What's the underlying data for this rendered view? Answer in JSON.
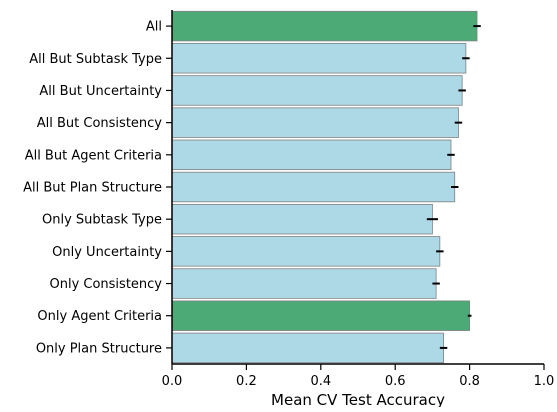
{
  "chart_data": {
    "type": "bar",
    "orientation": "horizontal",
    "xlabel": "Mean CV Test Accuracy",
    "ylabel": "",
    "title": "",
    "xlim": [
      0.0,
      1.0
    ],
    "xticks": [
      "0.0",
      "0.2",
      "0.4",
      "0.6",
      "0.8",
      "1.0"
    ],
    "grid": false,
    "colors": {
      "highlight": "#4caa76",
      "default": "#add8e6",
      "edge": "#808080",
      "error": "#000000"
    },
    "categories": [
      "All",
      "All But Subtask Type",
      "All But Uncertainty",
      "All But Consistency",
      "All But Agent Criteria",
      "All But Plan Structure",
      "Only Subtask Type",
      "Only Uncertainty",
      "Only Consistency",
      "Only Agent Criteria",
      "Only Plan Structure"
    ],
    "values": [
      0.82,
      0.79,
      0.78,
      0.77,
      0.75,
      0.76,
      0.7,
      0.72,
      0.71,
      0.8,
      0.73
    ],
    "errors": [
      0.01,
      0.01,
      0.01,
      0.01,
      0.01,
      0.01,
      0.015,
      0.01,
      0.01,
      0.005,
      0.01
    ],
    "highlighted": [
      true,
      false,
      false,
      false,
      false,
      false,
      false,
      false,
      false,
      true,
      false
    ]
  }
}
